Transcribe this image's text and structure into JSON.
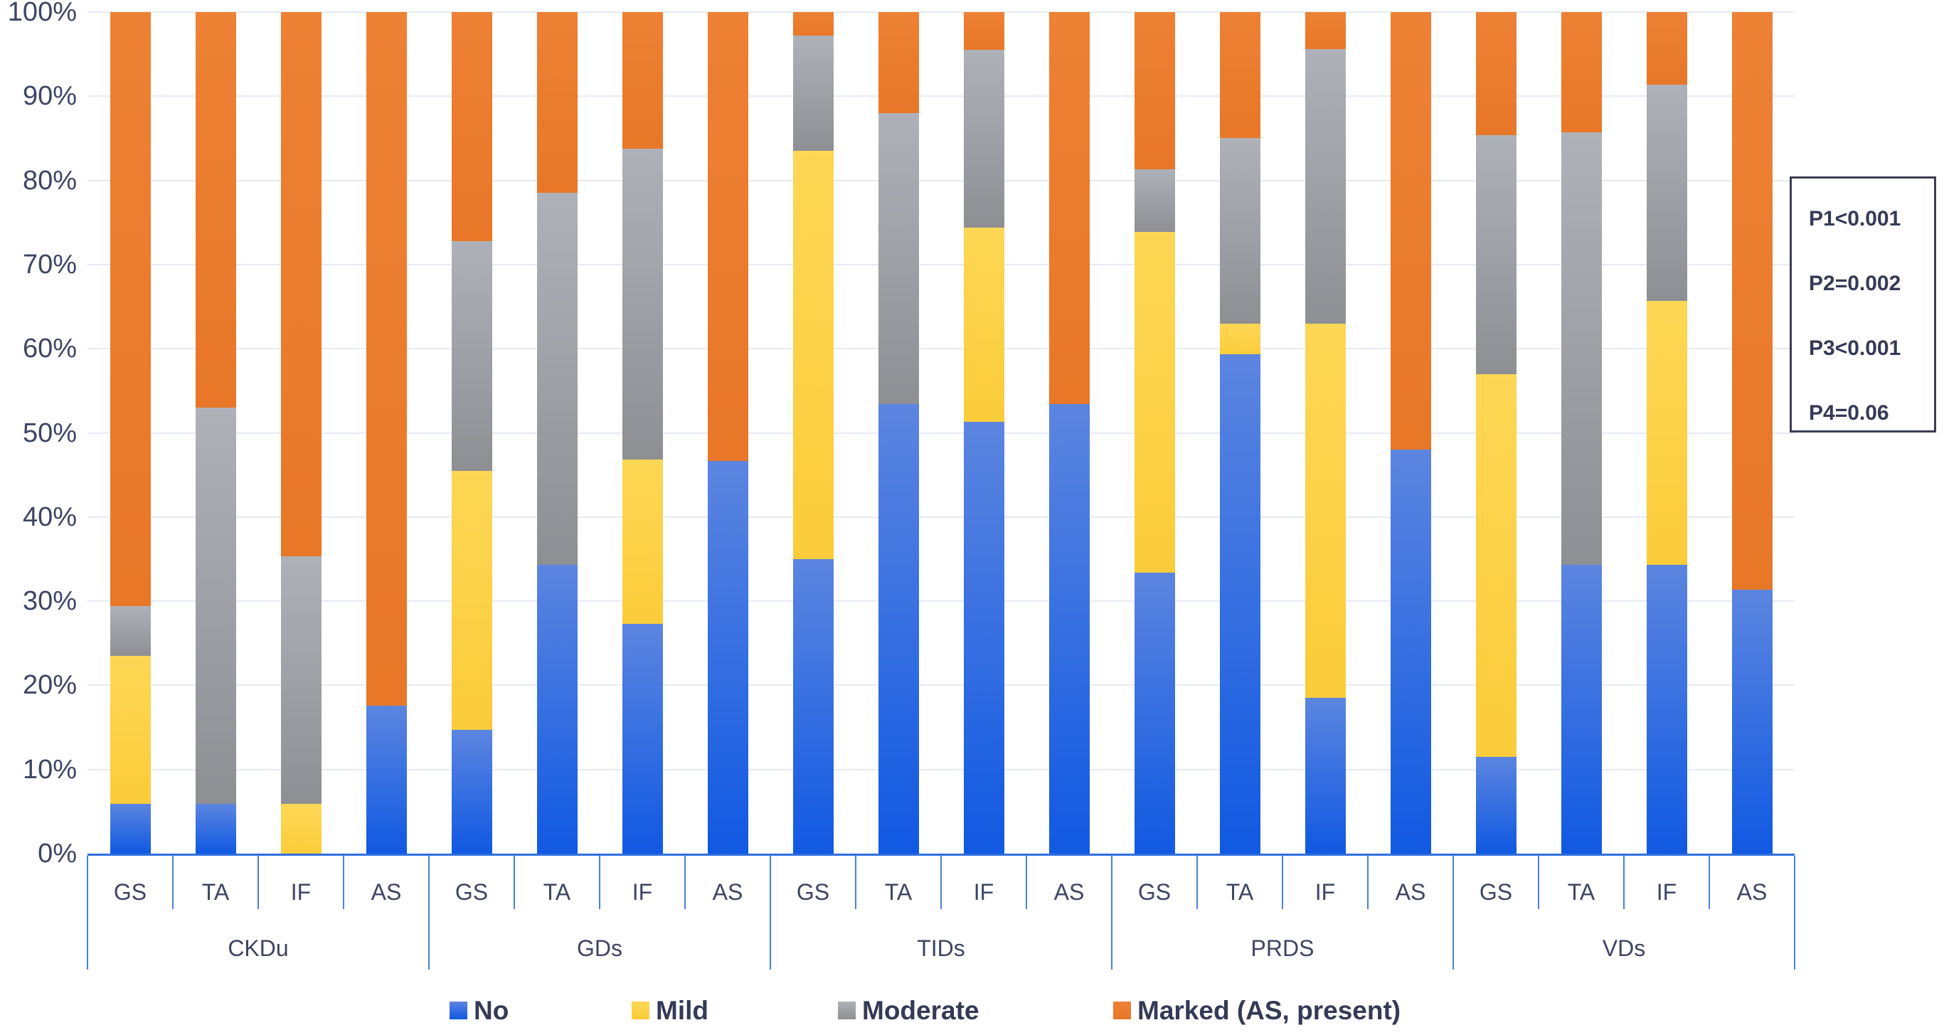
{
  "chart_data": {
    "type": "bar",
    "stacked": true,
    "percent_stacked": true,
    "title": "",
    "xlabel": "",
    "ylabel": "",
    "groups": [
      "CKDu",
      "GDs",
      "TIDs",
      "PRDS",
      "VDs"
    ],
    "categories_per_group": [
      "GS",
      "TA",
      "IF",
      "AS"
    ],
    "categories": [
      "CKDu GS",
      "CKDu TA",
      "CKDu IF",
      "CKDu AS",
      "GDs GS",
      "GDs TA",
      "GDs IF",
      "GDs AS",
      "TIDs GS",
      "TIDs TA",
      "TIDs IF",
      "TIDs AS",
      "PRDS GS",
      "PRDS TA",
      "PRDS IF",
      "PRDS AS",
      "VDs GS",
      "VDs TA",
      "VDs IF",
      "VDs AS"
    ],
    "series": [
      {
        "name": "No",
        "color": "#2468e0",
        "color_top": "#5c85e0",
        "color_bottom": "#1059e2",
        "values": [
          5.9,
          5.9,
          0,
          17.6,
          14.7,
          34.3,
          27.3,
          46.7,
          35.0,
          53.4,
          51.3,
          53.4,
          33.4,
          59.3,
          18.5,
          48.0,
          11.5,
          34.3,
          34.3,
          31.4
        ]
      },
      {
        "name": "Mild",
        "color": "#fcd24b",
        "color_top": "#fdd755",
        "color_bottom": "#fbcc3a",
        "values": [
          17.6,
          0,
          5.9,
          0,
          30.8,
          0,
          19.5,
          0,
          48.5,
          0,
          23.1,
          0,
          40.5,
          3.7,
          44.5,
          0,
          45.5,
          0,
          31.4,
          0
        ]
      },
      {
        "name": "Moderate",
        "color": "#9ea1a7",
        "color_top": "#aeb2b8",
        "color_bottom": "#8d8f93",
        "values": [
          5.9,
          47.1,
          29.4,
          0,
          27.3,
          44.2,
          37.0,
          0,
          13.7,
          34.6,
          21.1,
          0,
          7.4,
          22.0,
          32.6,
          0,
          28.4,
          51.4,
          25.7,
          0
        ]
      },
      {
        "name": "Marked (AS, present)",
        "color": "#eb7b2e",
        "color_top": "#ed8134",
        "color_bottom": "#e87728",
        "values": [
          70.6,
          47.0,
          64.7,
          82.4,
          27.2,
          21.5,
          16.2,
          53.3,
          2.8,
          12.0,
          4.5,
          46.6,
          18.7,
          15.0,
          4.4,
          52.0,
          14.6,
          14.3,
          8.6,
          68.6
        ]
      }
    ],
    "y_axis": {
      "min": 0,
      "max": 100,
      "ticks": [
        "100%",
        "90%",
        "80%",
        "70%",
        "60%",
        "50%",
        "40%",
        "30%",
        "20%",
        "10%",
        "0%"
      ],
      "grid": true
    },
    "legend": {
      "position": "bottom",
      "items": [
        "No",
        "Mild",
        "Moderate",
        "Marked (AS, present)"
      ]
    },
    "annotation_box": {
      "lines": [
        "P1<0.001",
        "P2=0.002",
        "P3<0.001",
        "P4=0.06"
      ]
    },
    "colors": {
      "axis_line": "#2e6fe0",
      "tick_line": "#4a80e2",
      "gridline": "#e6eaf4",
      "label_text": "#3e4563",
      "legend_text": "#343a56"
    }
  }
}
